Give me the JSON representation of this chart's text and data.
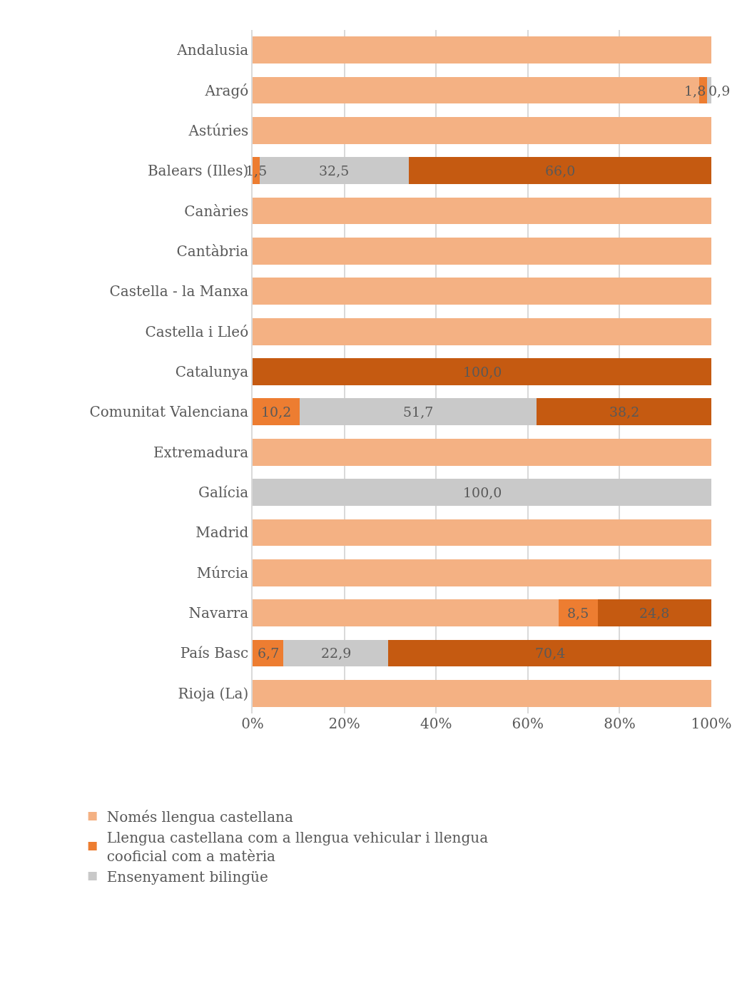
{
  "chart_data": {
    "type": "bar",
    "orientation": "horizontal",
    "stacked": true,
    "categories": [
      "Andalusia",
      "Aragó",
      "Astúries",
      "Balears (Illes)",
      "Canàries",
      "Cantàbria",
      "Castella - la Manxa",
      "Castella i Lleó",
      "Catalunya",
      "Comunitat Valenciana",
      "Extremadura",
      "Galícia",
      "Madrid",
      "Múrcia",
      "Navarra",
      "País Basc",
      "Rioja (La)"
    ],
    "series": [
      {
        "name": "Només llengua castellana",
        "color": "#f4b183",
        "values": [
          100,
          97.3,
          100,
          null,
          100,
          100,
          100,
          100,
          null,
          null,
          100,
          null,
          100,
          100,
          66.7,
          null,
          100
        ],
        "value_labels": [
          null,
          null,
          null,
          null,
          null,
          null,
          null,
          null,
          null,
          null,
          null,
          null,
          null,
          null,
          null,
          null,
          null
        ]
      },
      {
        "name": "Llengua castellana com a llengua vehicular i llengua cooficial com a matèria",
        "color": "#ed7d31",
        "values": [
          null,
          1.8,
          null,
          1.5,
          null,
          null,
          null,
          null,
          null,
          10.2,
          null,
          null,
          null,
          null,
          8.5,
          6.7,
          null
        ],
        "value_labels": [
          null,
          "1,8",
          null,
          "1,5",
          null,
          null,
          null,
          null,
          null,
          "10,2",
          null,
          null,
          null,
          null,
          "8,5",
          "6,7",
          null
        ]
      },
      {
        "name": "Ensenyament bilingüe",
        "color": "#c9c9c9",
        "values": [
          null,
          0.9,
          null,
          32.5,
          null,
          null,
          null,
          null,
          null,
          51.7,
          null,
          100.0,
          null,
          null,
          null,
          22.9,
          null
        ],
        "value_labels": [
          null,
          "0,9",
          null,
          "32,5",
          null,
          null,
          null,
          null,
          null,
          "51,7",
          null,
          "100,0",
          null,
          null,
          null,
          "22,9",
          null
        ]
      },
      {
        "color": "#c55a11",
        "values": [
          null,
          null,
          null,
          66.0,
          null,
          null,
          null,
          null,
          100.0,
          38.2,
          null,
          null,
          null,
          null,
          24.8,
          70.4,
          null
        ],
        "value_labels": [
          null,
          null,
          null,
          "66,0",
          null,
          null,
          null,
          null,
          "100,0",
          "38,2",
          null,
          null,
          null,
          null,
          "24,8",
          "70,4",
          null
        ]
      }
    ],
    "xlim": [
      0,
      100
    ],
    "xticks": [
      {
        "value": 0,
        "label": "0%"
      },
      {
        "value": 20,
        "label": "20%"
      },
      {
        "value": 40,
        "label": "40%"
      },
      {
        "value": 60,
        "label": "60%"
      },
      {
        "value": 80,
        "label": "80%"
      },
      {
        "value": 100,
        "label": "100%"
      }
    ],
    "grid": "x",
    "legend": "bottom"
  }
}
